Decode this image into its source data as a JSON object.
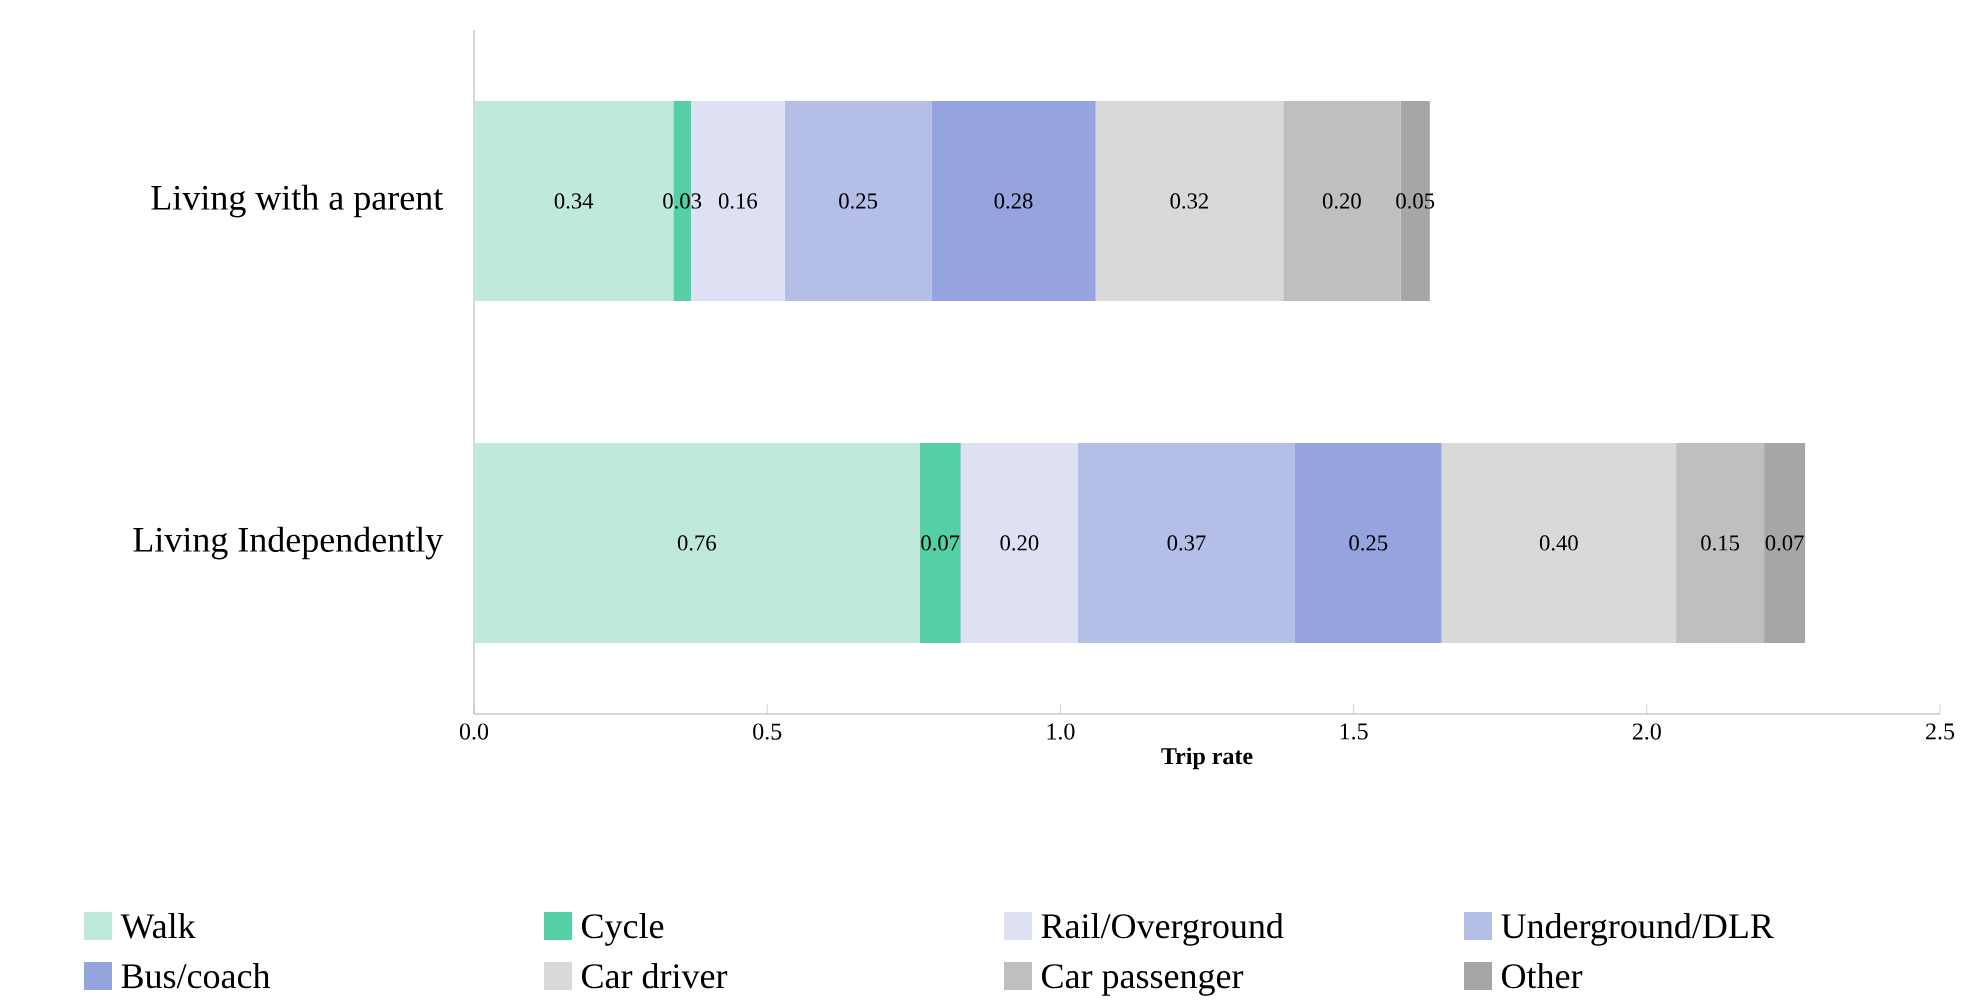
{
  "chart_data": {
    "type": "bar",
    "orientation": "horizontal",
    "stacked": true,
    "xlabel": "Trip rate",
    "categories": [
      "Living with a parent",
      "Living Independently"
    ],
    "xlim": [
      0,
      2.5
    ],
    "xticks": [
      {
        "value": 0,
        "label": "0.0"
      },
      0.5,
      {
        "value": 1,
        "label": "1.0"
      },
      1.5,
      {
        "value": 2,
        "label": "2.0"
      },
      2.5
    ],
    "legend": "bottom",
    "grid": false,
    "series": [
      {
        "name": "Walk",
        "color": "#bfe9dd",
        "values": [
          0.34,
          0.76
        ],
        "value_labels": [
          "0.34",
          "0.76"
        ]
      },
      {
        "name": "Cycle",
        "color": "#55cfa6",
        "values": [
          0.03,
          0.07
        ],
        "value_labels": [
          "0.03",
          "0.07"
        ]
      },
      {
        "name": "Rail/Overground",
        "color": "#dde1f3",
        "values": [
          0.16,
          0.2
        ],
        "value_labels": [
          "0.16",
          "0.20"
        ]
      },
      {
        "name": "Underground/DLR",
        "color": "#b4bee6",
        "values": [
          0.25,
          0.37
        ],
        "value_labels": [
          "0.25",
          "0.37"
        ]
      },
      {
        "name": "Bus/coach",
        "color": "#95a4de",
        "values": [
          0.28,
          0.25
        ],
        "value_labels": [
          "0.28",
          "0.25"
        ]
      },
      {
        "name": "Car driver",
        "color": "#d9d9d9",
        "values": [
          0.32,
          0.4
        ],
        "value_labels": [
          "0.32",
          "0.40"
        ]
      },
      {
        "name": "Car passenger",
        "color": "#bfbfbf",
        "values": [
          0.2,
          0.15
        ],
        "value_labels": [
          "0.20",
          "0.15"
        ]
      },
      {
        "name": "Other",
        "color": "#a6a6a6",
        "values": [
          0.05,
          0.07
        ],
        "value_labels": [
          "0.05",
          "0.07"
        ]
      }
    ]
  }
}
